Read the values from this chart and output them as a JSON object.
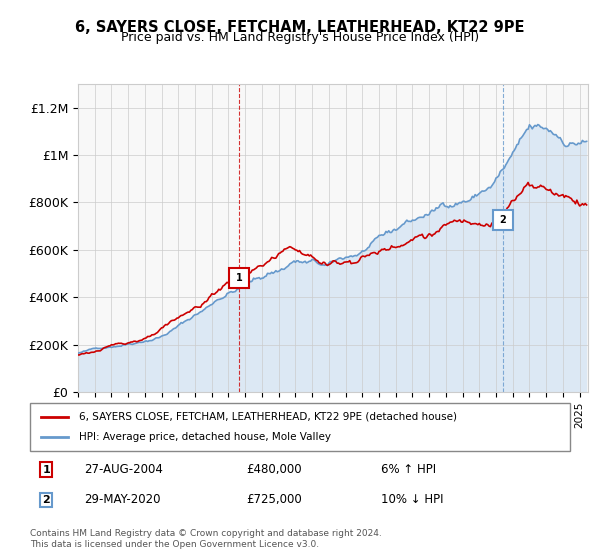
{
  "title": "6, SAYERS CLOSE, FETCHAM, LEATHERHEAD, KT22 9PE",
  "subtitle": "Price paid vs. HM Land Registry's House Price Index (HPI)",
  "ylabel_ticks": [
    "£0",
    "£200K",
    "£400K",
    "£600K",
    "£800K",
    "£1M",
    "£1.2M"
  ],
  "ytick_values": [
    0,
    200000,
    400000,
    600000,
    800000,
    1000000,
    1200000
  ],
  "ylim": [
    0,
    1300000
  ],
  "xlim_start": 1995.0,
  "xlim_end": 2025.5,
  "line1_color": "#cc0000",
  "line2_color": "#6699cc",
  "line2_fill_color": "#aaccee",
  "marker1_date": 2004.65,
  "marker1_value": 480000,
  "marker1_label": "1",
  "marker2_date": 2020.4,
  "marker2_value": 725000,
  "marker2_label": "2",
  "vline1_date": 2004.65,
  "vline2_date": 2020.4,
  "legend_line1": "6, SAYERS CLOSE, FETCHAM, LEATHERHEAD, KT22 9PE (detached house)",
  "legend_line2": "HPI: Average price, detached house, Mole Valley",
  "annotation1_date": "27-AUG-2004",
  "annotation1_price": "£480,000",
  "annotation1_hpi": "6% ↑ HPI",
  "annotation2_date": "29-MAY-2020",
  "annotation2_price": "£725,000",
  "annotation2_hpi": "10% ↓ HPI",
  "footer": "Contains HM Land Registry data © Crown copyright and database right 2024.\nThis data is licensed under the Open Government Licence v3.0.",
  "background_color": "#f8f8f8",
  "grid_color": "#cccccc"
}
